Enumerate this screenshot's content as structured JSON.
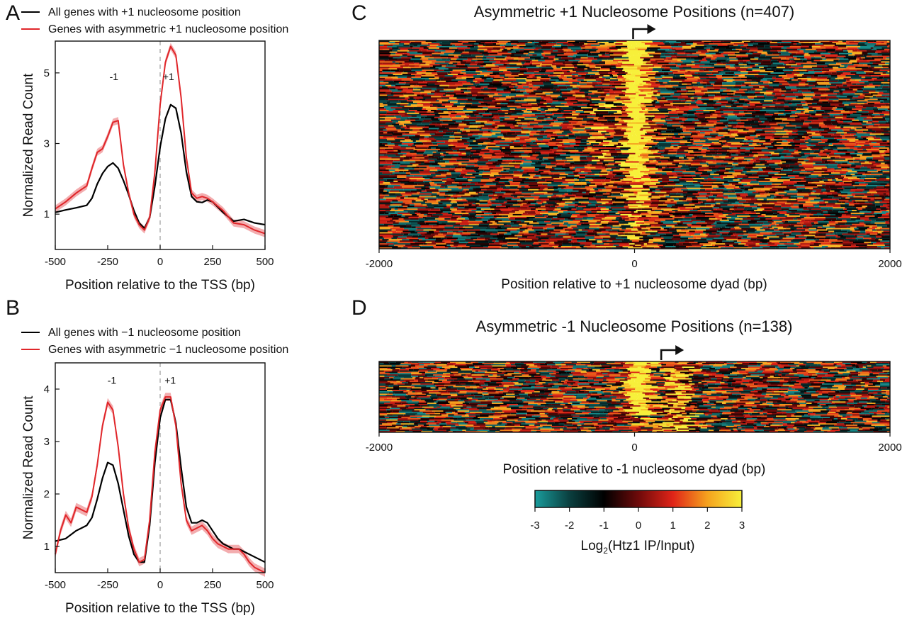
{
  "panels": {
    "A": {
      "letter": "A"
    },
    "B": {
      "letter": "B"
    },
    "C": {
      "letter": "C"
    },
    "D": {
      "letter": "D"
    }
  },
  "colorbar": {
    "label_prefix": "Log",
    "label_sub": "2",
    "label_suffix": "(Htz1 IP/Input)",
    "ticks": [
      -3,
      -2,
      -1,
      0,
      1,
      2,
      3
    ],
    "stops": [
      "#1a9c9c",
      "#0a3f3f",
      "#000000",
      "#6e0a0a",
      "#e02418",
      "#f5a21e",
      "#f7f03a"
    ]
  },
  "colors": {
    "all_genes": "#000000",
    "asymmetric": "#e0262a",
    "ribbon": "#f0999b",
    "tss_line": "#b0b0b0"
  },
  "chart_data": [
    {
      "id": "A",
      "type": "line",
      "title": "",
      "xlabel": "Position relative to the TSS (bp)",
      "ylabel": "Normalized Read Count",
      "xlim": [
        -500,
        500
      ],
      "ylim": [
        0,
        5.9
      ],
      "xticks": [
        -500,
        -250,
        0,
        250,
        500
      ],
      "yticks": [
        1,
        3,
        5
      ],
      "legend_position": "top",
      "annotations": [
        {
          "text": "-1",
          "x": -220,
          "y": 4.8
        },
        {
          "text": "+1",
          "x": 40,
          "y": 4.8
        }
      ],
      "series": [
        {
          "name": "All genes with +1 nucleosome position",
          "x": [
            -500,
            -450,
            -400,
            -350,
            -325,
            -300,
            -275,
            -250,
            -225,
            -200,
            -175,
            -150,
            -125,
            -100,
            -75,
            -50,
            -25,
            0,
            25,
            50,
            75,
            100,
            125,
            150,
            175,
            200,
            225,
            250,
            300,
            350,
            400,
            450,
            500
          ],
          "y": [
            1.05,
            1.12,
            1.18,
            1.25,
            1.45,
            1.85,
            2.15,
            2.35,
            2.45,
            2.3,
            1.95,
            1.55,
            1.1,
            0.75,
            0.6,
            0.9,
            1.8,
            2.9,
            3.7,
            4.1,
            4.0,
            3.3,
            2.2,
            1.5,
            1.35,
            1.33,
            1.4,
            1.35,
            1.05,
            0.8,
            0.85,
            0.75,
            0.7
          ]
        },
        {
          "name": "Genes with asymmetric +1 nucleosome position",
          "x": [
            -500,
            -450,
            -400,
            -350,
            -325,
            -300,
            -275,
            -250,
            -225,
            -200,
            -175,
            -150,
            -125,
            -100,
            -75,
            -50,
            -25,
            0,
            25,
            50,
            75,
            100,
            125,
            150,
            175,
            200,
            225,
            250,
            300,
            350,
            400,
            450,
            500
          ],
          "y": [
            1.15,
            1.35,
            1.6,
            1.8,
            2.3,
            2.75,
            2.85,
            3.2,
            3.6,
            3.65,
            2.4,
            1.6,
            1.0,
            0.7,
            0.55,
            0.9,
            2.2,
            4.1,
            5.3,
            5.75,
            5.5,
            4.3,
            2.6,
            1.6,
            1.45,
            1.5,
            1.45,
            1.35,
            1.1,
            0.75,
            0.7,
            0.55,
            0.45
          ],
          "band": 0.1
        }
      ]
    },
    {
      "id": "B",
      "type": "line",
      "title": "",
      "xlabel": "Position relative to the TSS (bp)",
      "ylabel": "Normalized Read Count",
      "xlim": [
        -500,
        500
      ],
      "ylim": [
        0.5,
        4.5
      ],
      "xticks": [
        -500,
        -250,
        0,
        250,
        500
      ],
      "yticks": [
        1,
        2,
        3,
        4
      ],
      "legend_position": "top",
      "annotations": [
        {
          "text": "-1",
          "x": -230,
          "y": 4.1
        },
        {
          "text": "+1",
          "x": 48,
          "y": 4.1
        }
      ],
      "series": [
        {
          "name": "All genes with −1 nucleosome position",
          "x": [
            -500,
            -450,
            -400,
            -375,
            -350,
            -325,
            -300,
            -275,
            -250,
            -225,
            -200,
            -175,
            -150,
            -125,
            -100,
            -75,
            -50,
            -25,
            0,
            25,
            50,
            75,
            100,
            125,
            150,
            175,
            200,
            225,
            250,
            275,
            300,
            325,
            350,
            375,
            400,
            450,
            500
          ],
          "y": [
            1.1,
            1.15,
            1.3,
            1.35,
            1.4,
            1.55,
            1.9,
            2.3,
            2.6,
            2.55,
            2.2,
            1.7,
            1.2,
            0.85,
            0.7,
            0.7,
            1.4,
            2.6,
            3.45,
            3.8,
            3.8,
            3.35,
            2.5,
            1.75,
            1.45,
            1.45,
            1.5,
            1.45,
            1.3,
            1.15,
            1.05,
            1.0,
            0.95,
            0.95,
            0.9,
            0.8,
            0.7
          ]
        },
        {
          "name": "Genes with asymmetric −1 nucleosome position",
          "x": [
            -500,
            -475,
            -450,
            -425,
            -400,
            -375,
            -350,
            -325,
            -300,
            -275,
            -250,
            -225,
            -200,
            -175,
            -150,
            -125,
            -100,
            -75,
            -50,
            -25,
            0,
            25,
            50,
            75,
            100,
            125,
            150,
            175,
            200,
            225,
            250,
            275,
            300,
            325,
            350,
            375,
            400,
            425,
            450,
            500
          ],
          "y": [
            0.85,
            1.3,
            1.6,
            1.45,
            1.75,
            1.7,
            1.65,
            1.95,
            2.55,
            3.3,
            3.75,
            3.6,
            2.9,
            2.0,
            1.35,
            0.95,
            0.7,
            0.75,
            1.5,
            2.8,
            3.6,
            3.85,
            3.85,
            3.3,
            2.2,
            1.5,
            1.3,
            1.35,
            1.4,
            1.3,
            1.15,
            1.05,
            1.0,
            0.95,
            0.95,
            0.95,
            0.85,
            0.7,
            0.6,
            0.5
          ],
          "band": 0.08
        }
      ]
    },
    {
      "id": "C",
      "type": "heatmap",
      "title": "Asymmetric +1 Nucleosome Positions (n=407)",
      "xlabel": "Position relative to +1 nucleosome dyad (bp)",
      "xlim": [
        -2000,
        2000
      ],
      "xticks": [
        -2000,
        0,
        2000
      ],
      "n_rows": 407,
      "tss_marker_x": 0
    },
    {
      "id": "D",
      "type": "heatmap",
      "title": "Asymmetric -1 Nucleosome Positions (n=138)",
      "xlabel": "Position relative to -1 nucleosome dyad (bp)",
      "xlim": [
        -2000,
        2000
      ],
      "xticks": [
        -2000,
        0,
        2000
      ],
      "n_rows": 138,
      "tss_marker_x": 220
    }
  ]
}
